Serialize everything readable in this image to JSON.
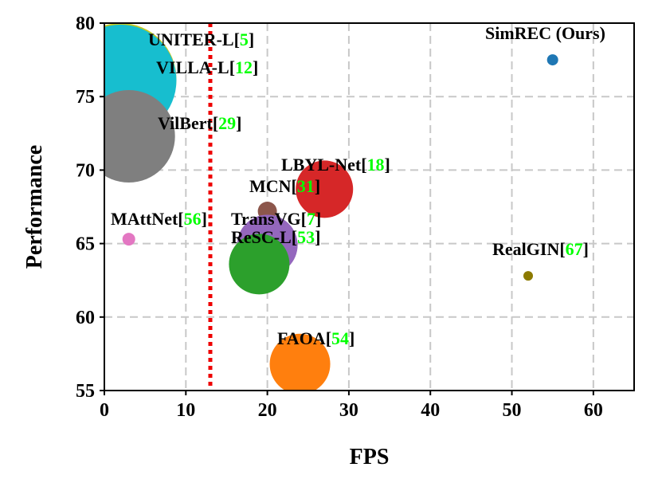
{
  "chart_data": {
    "type": "scatter",
    "title": "",
    "xlabel": "FPS",
    "ylabel": "Performance",
    "xlim": [
      0,
      65
    ],
    "ylim": [
      55,
      80
    ],
    "xticks": [
      0,
      10,
      20,
      30,
      40,
      50,
      60
    ],
    "yticks": [
      55,
      60,
      65,
      70,
      75,
      80
    ],
    "grid": true,
    "threshold_line": {
      "x": 13,
      "color": "#ee0000",
      "style": "dotted"
    },
    "points": [
      {
        "name": "UNITER-L",
        "ref": "5",
        "x": 2,
        "y": 76.2,
        "size": 70,
        "color": "#c6c91e"
      },
      {
        "name": "VILLA-L",
        "ref": "12",
        "x": 2,
        "y": 76.1,
        "size": 70,
        "color": "#17becf"
      },
      {
        "name": "VilBert",
        "ref": "29",
        "x": 3,
        "y": 72.3,
        "size": 58,
        "color": "#7f7f7f"
      },
      {
        "name": "LBYL-Net",
        "ref": "18",
        "x": 27,
        "y": 68.7,
        "size": 36,
        "color": "#d62728"
      },
      {
        "name": "MCN",
        "ref": "31",
        "x": 20,
        "y": 67.2,
        "size": 12,
        "color": "#8c564b"
      },
      {
        "name": "MAttNet",
        "ref": "56",
        "x": 3,
        "y": 65.3,
        "size": 8,
        "color": "#e377c2"
      },
      {
        "name": "TransVG",
        "ref": "7",
        "x": 20,
        "y": 64.9,
        "size": 38,
        "color": "#9467bd"
      },
      {
        "name": "ReSC-L",
        "ref": "53",
        "x": 19,
        "y": 63.6,
        "size": 38,
        "color": "#2ca02c"
      },
      {
        "name": "RealGIN",
        "ref": "67",
        "x": 52,
        "y": 62.8,
        "size": 6,
        "color": "#8c7a00"
      },
      {
        "name": "FAOA",
        "ref": "54",
        "x": 24,
        "y": 56.8,
        "size": 38,
        "color": "#ff7f0e"
      },
      {
        "name": "SimREC (Ours)",
        "ref": "",
        "x": 55,
        "y": 77.5,
        "size": 7,
        "color": "#1f77b4"
      }
    ]
  }
}
